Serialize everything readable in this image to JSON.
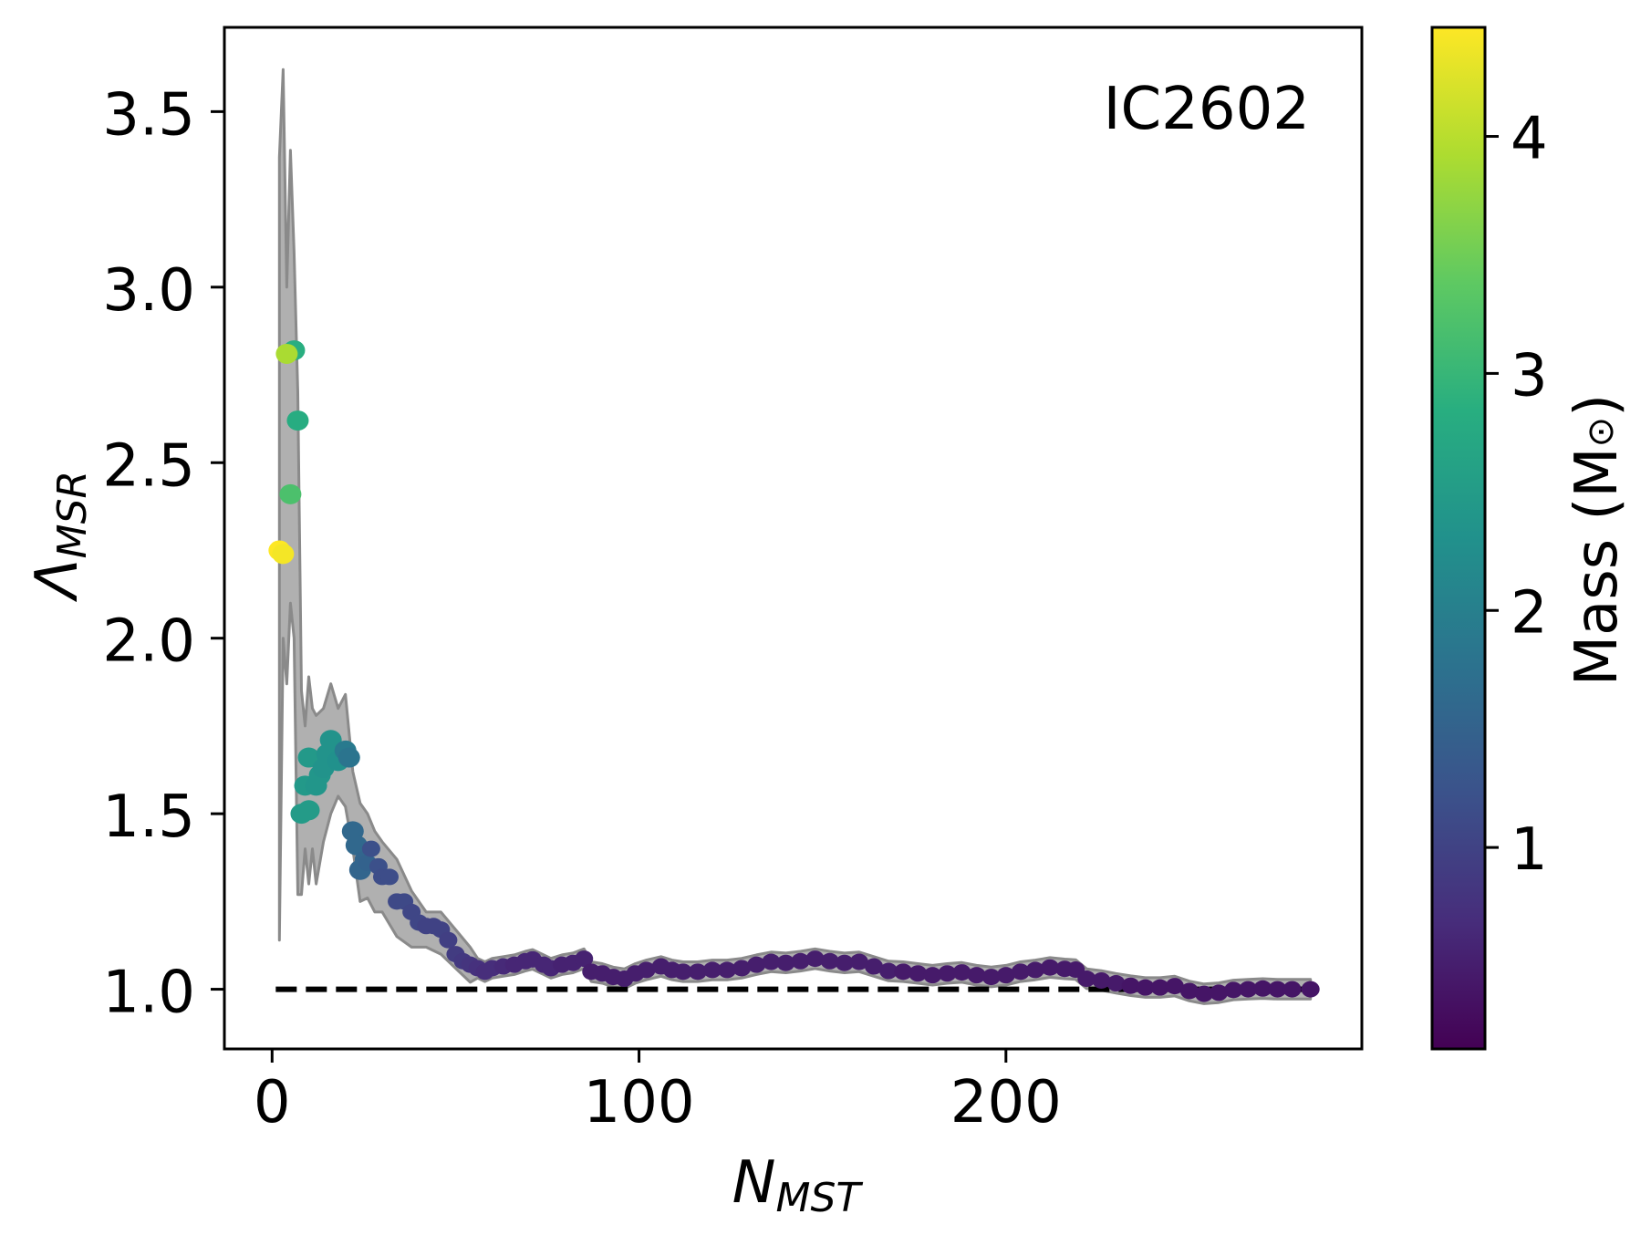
{
  "chart_data": {
    "type": "scatter",
    "annotation": "IC2602",
    "xlabel": "N",
    "xlabel_sub": "MST",
    "ylabel": "Λ",
    "ylabel_sub": "MSR",
    "xlim": [
      -13,
      297
    ],
    "ylim": [
      0.83,
      3.74
    ],
    "xticks": [
      0,
      100,
      200
    ],
    "xtick_labels": [
      "0",
      "100",
      "200"
    ],
    "yticks": [
      1.0,
      1.5,
      2.0,
      2.5,
      3.0,
      3.5
    ],
    "ytick_labels": [
      "1.0",
      "1.5",
      "2.0",
      "2.5",
      "3.0",
      "3.5"
    ],
    "reference_line": {
      "y": 1.0,
      "x_range": [
        1,
        283
      ],
      "style": "dashed",
      "color": "#000000"
    },
    "colorbar": {
      "label": "Mass (M",
      "label_symbol": "⊙",
      "label_close": ")",
      "colormap": "viridis",
      "range": [
        0.15,
        4.46
      ],
      "ticks": [
        1,
        2,
        3,
        4
      ],
      "tick_labels": [
        "1",
        "2",
        "3",
        "4"
      ]
    },
    "band_color": "#b0b0b0",
    "band_edge_color": "#8a8a8a",
    "band": [
      [
        2,
        1.14,
        3.37
      ],
      [
        3,
        2.0,
        3.62
      ],
      [
        4,
        1.87,
        3.0
      ],
      [
        5,
        2.1,
        3.39
      ],
      [
        6,
        2.0,
        3.1
      ],
      [
        7,
        1.27,
        2.7
      ],
      [
        8,
        1.27,
        1.85
      ],
      [
        9,
        1.4,
        1.75
      ],
      [
        10,
        1.3,
        1.89
      ],
      [
        11,
        1.4,
        1.8
      ],
      [
        12,
        1.3,
        1.78
      ],
      [
        14,
        1.42,
        1.8
      ],
      [
        16,
        1.5,
        1.87
      ],
      [
        18,
        1.55,
        1.8
      ],
      [
        20,
        1.52,
        1.84
      ],
      [
        22,
        1.4,
        1.62
      ],
      [
        24,
        1.25,
        1.53
      ],
      [
        26,
        1.26,
        1.5
      ],
      [
        28,
        1.22,
        1.45
      ],
      [
        30,
        1.22,
        1.42
      ],
      [
        34,
        1.15,
        1.37
      ],
      [
        38,
        1.12,
        1.28
      ],
      [
        42,
        1.12,
        1.22
      ],
      [
        46,
        1.1,
        1.22
      ],
      [
        50,
        1.06,
        1.17
      ],
      [
        54,
        1.02,
        1.12
      ]
    ],
    "band_halfwidth_after_n54": 0.028,
    "points_columns": [
      "N_MST",
      "Lambda_MSR",
      "mass"
    ],
    "points": [
      [
        2,
        2.25,
        4.46
      ],
      [
        3,
        2.24,
        4.4
      ],
      [
        6,
        2.82,
        2.85
      ],
      [
        4,
        2.81,
        3.9
      ],
      [
        5,
        2.41,
        3.2
      ],
      [
        7,
        2.62,
        2.8
      ],
      [
        8,
        1.5,
        2.5
      ],
      [
        10,
        1.51,
        2.5
      ],
      [
        9,
        1.58,
        2.45
      ],
      [
        10,
        1.66,
        2.45
      ],
      [
        12,
        1.58,
        2.4
      ],
      [
        13,
        1.61,
        2.4
      ],
      [
        14,
        1.63,
        2.35
      ],
      [
        15,
        1.67,
        2.35
      ],
      [
        16,
        1.71,
        2.35
      ],
      [
        18,
        1.65,
        2.3
      ],
      [
        20,
        1.68,
        1.9
      ],
      [
        21,
        1.66,
        1.8
      ],
      [
        22,
        1.45,
        1.6
      ],
      [
        23,
        1.41,
        1.6
      ],
      [
        24,
        1.34,
        1.55
      ],
      [
        25,
        1.37,
        1.55
      ],
      [
        26,
        1.36,
        1.5
      ],
      [
        27,
        1.4,
        1.2
      ],
      [
        29,
        1.35,
        1.2
      ],
      [
        30,
        1.32,
        1.15
      ],
      [
        32,
        1.32,
        1.15
      ],
      [
        34,
        1.25,
        1.1
      ],
      [
        36,
        1.25,
        1.1
      ],
      [
        38,
        1.22,
        1.05
      ],
      [
        40,
        1.19,
        1.05
      ],
      [
        42,
        1.18,
        1.0
      ],
      [
        44,
        1.18,
        1.0
      ],
      [
        46,
        1.17,
        1.0
      ],
      [
        48,
        1.14,
        0.95
      ],
      [
        50,
        1.1,
        0.9
      ],
      [
        52,
        1.08,
        0.85
      ],
      [
        54,
        1.07,
        0.8
      ],
      [
        56,
        1.06,
        0.75
      ],
      [
        58,
        1.05,
        0.7
      ],
      [
        60,
        1.06,
        0.7
      ],
      [
        63,
        1.065,
        0.65
      ],
      [
        66,
        1.07,
        0.6
      ],
      [
        69,
        1.08,
        0.6
      ],
      [
        71,
        1.085,
        0.6
      ],
      [
        74,
        1.07,
        0.6
      ],
      [
        76,
        1.06,
        0.6
      ],
      [
        79,
        1.07,
        0.55
      ],
      [
        82,
        1.075,
        0.55
      ],
      [
        85,
        1.087,
        0.55
      ],
      [
        87,
        1.05,
        0.5
      ],
      [
        90,
        1.045,
        0.5
      ],
      [
        93,
        1.035,
        0.5
      ],
      [
        96,
        1.03,
        0.5
      ],
      [
        99,
        1.045,
        0.5
      ],
      [
        102,
        1.055,
        0.5
      ],
      [
        106,
        1.065,
        0.5
      ],
      [
        109,
        1.055,
        0.5
      ],
      [
        112,
        1.05,
        0.5
      ],
      [
        116,
        1.05,
        0.5
      ],
      [
        120,
        1.055,
        0.5
      ],
      [
        124,
        1.055,
        0.5
      ],
      [
        128,
        1.06,
        0.5
      ],
      [
        132,
        1.07,
        0.5
      ],
      [
        136,
        1.078,
        0.5
      ],
      [
        140,
        1.075,
        0.5
      ],
      [
        144,
        1.08,
        0.5
      ],
      [
        148,
        1.087,
        0.5
      ],
      [
        152,
        1.08,
        0.5
      ],
      [
        156,
        1.075,
        0.5
      ],
      [
        160,
        1.078,
        0.5
      ],
      [
        164,
        1.065,
        0.5
      ],
      [
        168,
        1.052,
        0.5
      ],
      [
        172,
        1.05,
        0.45
      ],
      [
        176,
        1.045,
        0.45
      ],
      [
        180,
        1.04,
        0.45
      ],
      [
        184,
        1.045,
        0.45
      ],
      [
        188,
        1.048,
        0.45
      ],
      [
        192,
        1.04,
        0.45
      ],
      [
        196,
        1.035,
        0.45
      ],
      [
        200,
        1.04,
        0.45
      ],
      [
        204,
        1.05,
        0.45
      ],
      [
        208,
        1.055,
        0.45
      ],
      [
        212,
        1.062,
        0.45
      ],
      [
        216,
        1.058,
        0.45
      ],
      [
        219,
        1.056,
        0.45
      ],
      [
        222,
        1.03,
        0.45
      ],
      [
        226,
        1.025,
        0.45
      ],
      [
        230,
        1.017,
        0.45
      ],
      [
        234,
        1.01,
        0.4
      ],
      [
        238,
        1.005,
        0.4
      ],
      [
        242,
        1.005,
        0.4
      ],
      [
        246,
        1.009,
        0.4
      ],
      [
        250,
        0.995,
        0.4
      ],
      [
        254,
        0.987,
        0.4
      ],
      [
        258,
        0.99,
        0.4
      ],
      [
        262,
        0.998,
        0.4
      ],
      [
        266,
        1.0,
        0.4
      ],
      [
        270,
        1.002,
        0.4
      ],
      [
        274,
        1.0,
        0.4
      ],
      [
        278,
        1.0,
        0.4
      ],
      [
        283,
        1.0,
        0.4
      ]
    ]
  }
}
